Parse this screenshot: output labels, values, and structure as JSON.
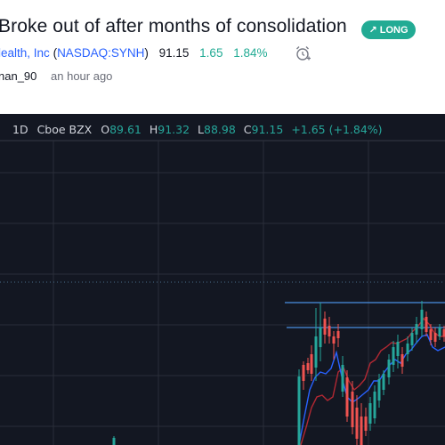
{
  "idea": {
    "title": "Broke out of after months of consolidation",
    "badge": {
      "label": "LONG",
      "icon": "arrow-up-right-icon",
      "color": "#22ab94"
    },
    "symbol": {
      "company": "lealth, Inc",
      "open_paren": "(",
      "ticker": "NASDAQ:SYNH",
      "close_paren": ")",
      "price": "91.15",
      "change": "1.65",
      "change_pct": "1.84%",
      "alert_icon": "alarm-clock-plus-icon"
    },
    "author": "nan_90",
    "posted": "an hour ago"
  },
  "chart_legend": {
    "interval": "1D",
    "exchange": "Cboe BZX",
    "o_key": "O",
    "o_val": "89.61",
    "h_key": "H",
    "h_val": "91.32",
    "l_key": "L",
    "l_val": "88.98",
    "c_key": "C",
    "c_val": "91.15",
    "change": "+1.65 (+1.84%)"
  },
  "colors": {
    "bg": "#131722",
    "grid": "#2a2e39",
    "up": "#26a69a",
    "down": "#ef5350",
    "ema_fast": "#2962ff",
    "ema_slow": "#b22833",
    "resistance": "#4a90e2"
  },
  "chart_data": {
    "type": "candlestick",
    "ohlc_visible_tail": [
      {
        "o": 89.61,
        "h": 91.32,
        "l": 88.98,
        "c": 91.15
      }
    ]
  }
}
